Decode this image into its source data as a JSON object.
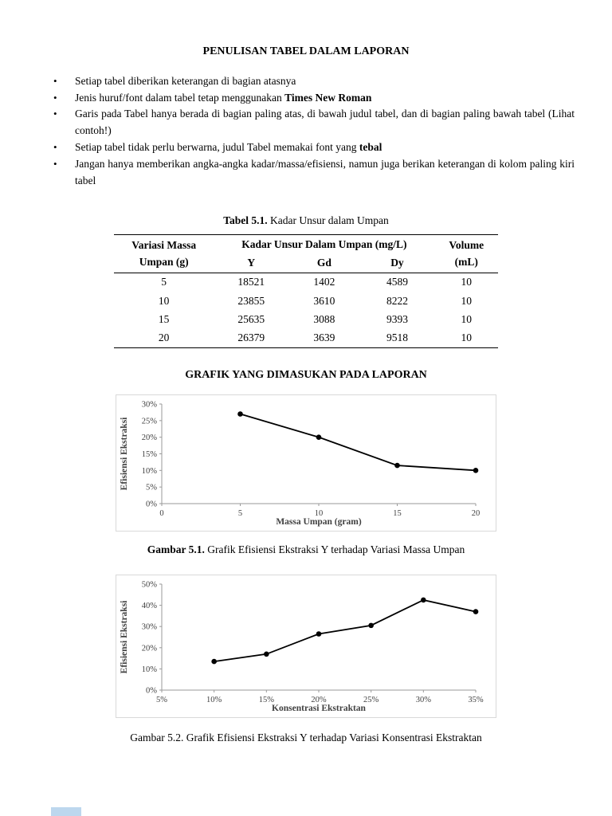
{
  "document": {
    "title": "PENULISAN TABEL DALAM LAPORAN",
    "bullets": [
      {
        "pre": "Setiap tabel diberikan keterangan di bagian atasnya",
        "bold": ""
      },
      {
        "pre": "Jenis huruf/font dalam tabel tetap menggunakan ",
        "bold": "Times New Roman"
      },
      {
        "pre": "Garis pada Tabel hanya berada di bagian paling atas, di bawah judul tabel, dan di bagian paling bawah tabel (Lihat contoh!)",
        "bold": ""
      },
      {
        "pre": "Setiap tabel tidak perlu berwarna, judul Tabel memakai font yang ",
        "bold": "tebal"
      },
      {
        "pre": "Jangan hanya memberikan angka-angka kadar/massa/efisiensi, namun juga berikan keterangan di kolom paling kiri tabel",
        "bold": ""
      }
    ],
    "table_caption": {
      "bold": "Tabel 5.1.",
      "rest": " Kadar Unsur dalam Umpan"
    },
    "graph_section_title": "GRAFIK YANG DIMASUKAN PADA LAPORAN",
    "figure1_caption": {
      "bold": "Gambar 5.1.",
      "rest": " Grafik Efisiensi Ekstraksi Y terhadap Variasi Massa Umpan"
    },
    "figure2_caption": "Gambar 5.2. Grafik Efisiensi Ekstraksi Y terhadap Variasi Konsentrasi Ekstraktan"
  },
  "table": {
    "header": {
      "col_mass_line1": "Variasi Massa",
      "col_mass_line2": "Umpan (g)",
      "span": "Kadar Unsur Dalam Umpan (mg/L)",
      "elements": [
        "Y",
        "Gd",
        "Dy"
      ],
      "col_volume_line1": "Volume",
      "col_volume_line2": "(mL)"
    },
    "rows": [
      [
        "5",
        "18521",
        "1402",
        "4589",
        "10"
      ],
      [
        "10",
        "23855",
        "3610",
        "8222",
        "10"
      ],
      [
        "15",
        "25635",
        "3088",
        "9393",
        "10"
      ],
      [
        "20",
        "26379",
        "3639",
        "9518",
        "10"
      ]
    ]
  },
  "chart_data": [
    {
      "type": "line",
      "x": [
        5,
        10,
        15,
        20
      ],
      "values": [
        27,
        20,
        11.5,
        10
      ],
      "xlabel": "Massa Umpan (gram)",
      "ylabel": "Efisiensi Ekstraksi",
      "xlim": [
        0,
        20
      ],
      "ylim": [
        0,
        30
      ],
      "xticks": [
        "0",
        "5",
        "10",
        "15",
        "20"
      ],
      "yticks": [
        "0%",
        "5%",
        "10%",
        "15%",
        "20%",
        "25%",
        "30%"
      ],
      "grid": false,
      "legend": false,
      "line_color": "#000000",
      "marker": "circle"
    },
    {
      "type": "line",
      "x": [
        10,
        15,
        20,
        25,
        30,
        35
      ],
      "values": [
        13.5,
        17,
        26.5,
        30.5,
        42.5,
        37
      ],
      "xlabel": "Konsentrasi Ekstraktan",
      "ylabel": "Efisiensi Ekstraksi",
      "xlim": [
        5,
        35
      ],
      "ylim": [
        0,
        50
      ],
      "xticks": [
        "5%",
        "10%",
        "15%",
        "20%",
        "25%",
        "30%",
        "35%"
      ],
      "yticks": [
        "0%",
        "10%",
        "20%",
        "30%",
        "40%",
        "50%"
      ],
      "grid": false,
      "legend": false,
      "line_color": "#000000",
      "marker": "circle"
    }
  ],
  "colors": {
    "chart_line": "#000000",
    "axis": "#9a9a9a",
    "axis_text": "#404040",
    "chart_border": "#d9d9d9",
    "next_page_fragment": "#bdd7ee"
  }
}
